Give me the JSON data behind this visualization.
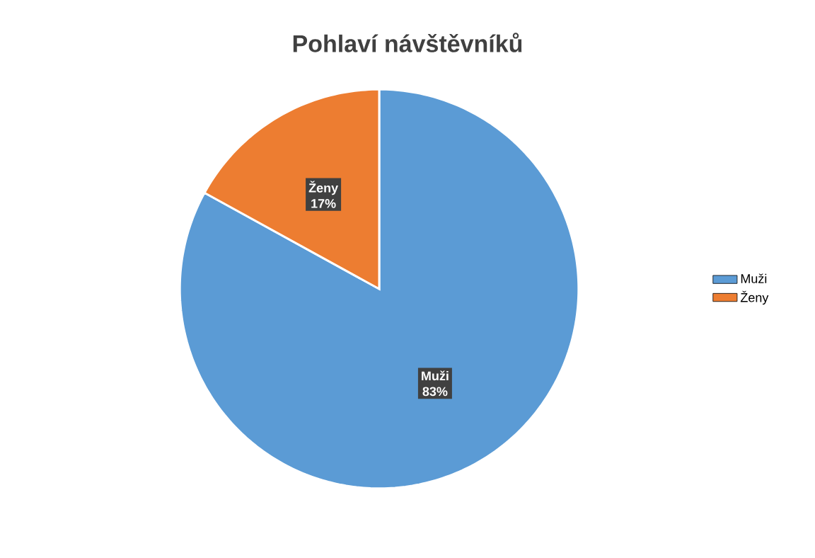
{
  "chart_data": {
    "type": "pie",
    "title": "Pohlaví návštěvníků",
    "categories": [
      "Muži",
      "Ženy"
    ],
    "values": [
      83,
      17
    ],
    "value_labels": [
      "83%",
      "17%"
    ],
    "colors": [
      "#5b9bd5",
      "#ed7d31"
    ],
    "legend": "right"
  }
}
